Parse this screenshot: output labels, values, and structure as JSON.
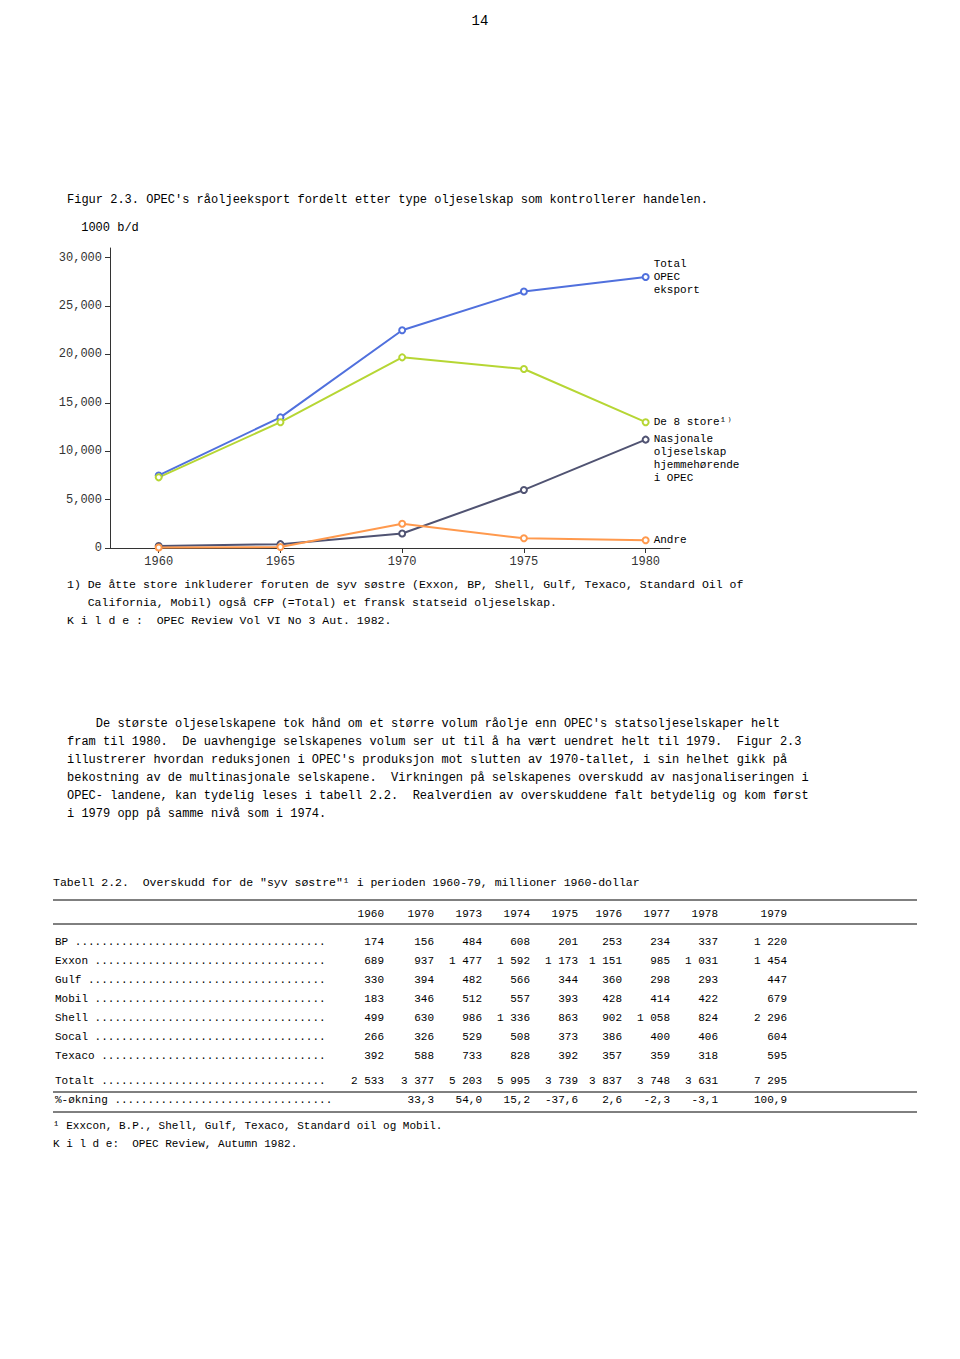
{
  "page_number": "14",
  "chart_data": {
    "type": "line",
    "title": "Figur 2.3. OPEC's råoljeeksport fordelt etter type oljeselskap som kontrollerer handelen.",
    "ylabel": "1000 b/d",
    "x": [
      1960,
      1965,
      1970,
      1975,
      1980
    ],
    "xlim": [
      1958,
      1981
    ],
    "xticks": [
      1960,
      1965,
      1970,
      1975,
      1980
    ],
    "ylim": [
      0,
      31000
    ],
    "yticks": [
      0,
      {
        "value": 5000,
        "label": "5,000"
      },
      {
        "value": 10000,
        "label": "10,000"
      },
      {
        "value": 15000,
        "label": "15,000"
      },
      {
        "value": 20000,
        "label": "20,000"
      },
      {
        "value": 25000,
        "label": "25,000"
      },
      {
        "value": 30000,
        "label": "30,000"
      }
    ],
    "grid": false,
    "series": [
      {
        "name": "Total\nOPEC\neksport",
        "values": [
          7500,
          13500,
          22500,
          26500,
          28000
        ]
      },
      {
        "name": "De 8 store¹⁾",
        "values": [
          7300,
          13000,
          19700,
          18500,
          13000
        ]
      },
      {
        "name": "Nasjonale\noljeselskap\nhjemmehørende\ni OPEC",
        "values": [
          200,
          400,
          1500,
          6000,
          11200
        ]
      },
      {
        "name": "Andre",
        "values": [
          50,
          100,
          2500,
          1000,
          800
        ]
      }
    ],
    "footnotes": [
      "1) De åtte store inkluderer foruten de syv søstre (Exxon, BP, Shell, Gulf, Texaco, Standard Oil of",
      "   California, Mobil) også CFP (=Total) et fransk statseid oljeselskap.",
      "K i l d e :  OPEC Review Vol VI No 3 Aut. 1982."
    ]
  },
  "paragraph": [
    "    De største oljeselskapene tok hånd om et større volum råolje enn OPEC's statsoljeselskaper helt",
    "fram til 1980.  De uavhengige selskapenes volum ser ut til å ha vært uendret helt til 1979.  Figur 2.3",
    "illustrerer hvordan reduksjonen i OPEC's produksjon mot slutten av 1970-tallet, i sin helhet gikk på",
    "bekostning av de multinasjonale selskapene.  Virkningen på selskapenes overskudd av nasjonaliseringen i",
    "OPEC- landene, kan tydelig leses i tabell 2.2.  Realverdien av overskuddene falt betydelig og kom først",
    "i 1979 opp på samme nivå som i 1974."
  ],
  "table": {
    "title": "Tabell 2.2.  Overskudd for de \"syv søstre\"¹ i perioden 1960-79, millioner 1960-dollar",
    "columns": [
      "1960",
      "1970",
      "1973",
      "1974",
      "1975",
      "1976",
      "1977",
      "1978",
      "1979"
    ],
    "rows": [
      [
        "BP ......................................",
        "174",
        "156",
        "484",
        "608",
        "201",
        "253",
        "234",
        "337",
        "1 220"
      ],
      [
        "Exxon ...................................",
        "689",
        "937",
        "1 477",
        "1 592",
        "1 173",
        "1 151",
        "985",
        "1 031",
        "1 454"
      ],
      [
        "Gulf ....................................",
        "330",
        "394",
        "482",
        "566",
        "344",
        "360",
        "298",
        "293",
        "447"
      ],
      [
        "Mobil ...................................",
        "183",
        "346",
        "512",
        "557",
        "393",
        "428",
        "414",
        "422",
        "679"
      ],
      [
        "Shell ...................................",
        "499",
        "630",
        "986",
        "1 336",
        "863",
        "902",
        "1 058",
        "824",
        "2 296"
      ],
      [
        "Socal ...................................",
        "266",
        "326",
        "529",
        "508",
        "373",
        "386",
        "400",
        "406",
        "604"
      ],
      [
        "Texaco ..................................",
        "392",
        "588",
        "733",
        "828",
        "392",
        "357",
        "359",
        "318",
        "595"
      ]
    ],
    "total": [
      "Totalt ..................................",
      "2 533",
      "3 377",
      "5 203",
      "5 995",
      "3 739",
      "3 837",
      "3 748",
      "3 631",
      "7 295"
    ],
    "change": [
      "%-økning .................................",
      null,
      "33,3",
      "54,0",
      "15,2",
      "-37,6",
      "2,6",
      "-2,3",
      "-3,1",
      "100,9"
    ],
    "footnotes": [
      "¹ Exxcon, B.P., Shell, Gulf, Texaco, Standard oil og Mobil.",
      "K i l d e:  OPEC Review, Autumn 1982."
    ]
  }
}
